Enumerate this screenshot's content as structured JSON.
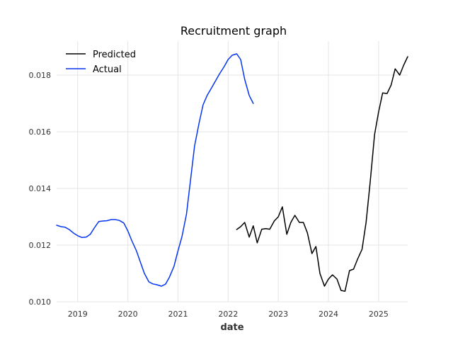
{
  "chart_data": {
    "type": "line",
    "title": "Recruitment graph",
    "xlabel": "date",
    "ylabel": "",
    "x_range": [
      2018.58,
      2025.58
    ],
    "ylim": [
      0.01,
      0.0192
    ],
    "grid": true,
    "legend_position": "top-left",
    "x_ticks": [
      "2019",
      "2020",
      "2021",
      "2022",
      "2023",
      "2024",
      "2025"
    ],
    "y_ticks": [
      "0.010",
      "0.012",
      "0.014",
      "0.016",
      "0.018"
    ],
    "series": [
      {
        "name": "Predicted",
        "color": "#000000",
        "x": [
          2022.17,
          2022.25,
          2022.33,
          2022.42,
          2022.5,
          2022.58,
          2022.67,
          2022.75,
          2022.83,
          2022.92,
          2023.0,
          2023.08,
          2023.17,
          2023.25,
          2023.33,
          2023.42,
          2023.5,
          2023.58,
          2023.67,
          2023.75,
          2023.83,
          2023.92,
          2024.0,
          2024.08,
          2024.17,
          2024.25,
          2024.33,
          2024.42,
          2024.5,
          2024.58,
          2024.67,
          2024.75,
          2024.83,
          2024.92,
          2025.0,
          2025.08,
          2025.17,
          2025.25,
          2025.33,
          2025.42,
          2025.5,
          2025.58
        ],
        "values": [
          0.01255,
          0.01265,
          0.0128,
          0.01228,
          0.01268,
          0.01208,
          0.01256,
          0.01258,
          0.01256,
          0.01285,
          0.013,
          0.01335,
          0.01238,
          0.0128,
          0.01305,
          0.0128,
          0.0128,
          0.01243,
          0.0117,
          0.01195,
          0.011,
          0.01055,
          0.0108,
          0.01095,
          0.0108,
          0.0104,
          0.01037,
          0.0111,
          0.01115,
          0.0115,
          0.01185,
          0.0128,
          0.0142,
          0.0159,
          0.0167,
          0.01737,
          0.01735,
          0.01765,
          0.01822,
          0.018,
          0.01835,
          0.01865
        ]
      },
      {
        "name": "Actual",
        "color": "#0535ef",
        "x": [
          2018.58,
          2018.67,
          2018.75,
          2018.83,
          2018.92,
          2019.0,
          2019.08,
          2019.17,
          2019.25,
          2019.33,
          2019.42,
          2019.5,
          2019.58,
          2019.67,
          2019.75,
          2019.83,
          2019.92,
          2020.0,
          2020.08,
          2020.17,
          2020.25,
          2020.33,
          2020.42,
          2020.5,
          2020.58,
          2020.67,
          2020.75,
          2020.83,
          2020.92,
          2021.0,
          2021.08,
          2021.17,
          2021.25,
          2021.33,
          2021.42,
          2021.5,
          2021.58,
          2021.67,
          2021.75,
          2021.83,
          2021.92,
          2022.0,
          2022.08,
          2022.17,
          2022.25,
          2022.33,
          2022.42,
          2022.5
        ],
        "values": [
          0.0127,
          0.01265,
          0.01263,
          0.01255,
          0.01242,
          0.01233,
          0.01227,
          0.01228,
          0.01238,
          0.0126,
          0.01283,
          0.01285,
          0.01286,
          0.0129,
          0.0129,
          0.01287,
          0.01278,
          0.0125,
          0.01215,
          0.0118,
          0.0114,
          0.011,
          0.0107,
          0.01063,
          0.0106,
          0.01055,
          0.01062,
          0.01087,
          0.01125,
          0.0118,
          0.0123,
          0.0131,
          0.0143,
          0.0155,
          0.0163,
          0.01695,
          0.01728,
          0.01755,
          0.0178,
          0.01805,
          0.0183,
          0.01855,
          0.0187,
          0.01875,
          0.01855,
          0.01785,
          0.01728,
          0.017
        ]
      }
    ]
  }
}
